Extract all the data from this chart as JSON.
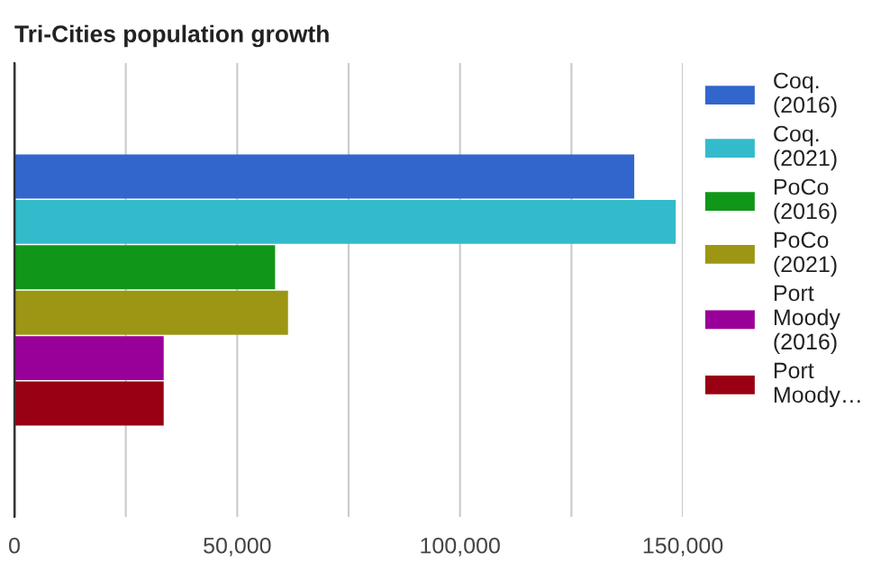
{
  "chart_data": {
    "type": "bar",
    "orientation": "horizontal",
    "title": "Tri-Cities population growth",
    "categories": [
      null
    ],
    "series": [
      {
        "name": "Coq.\n(2016)",
        "color": "#3366cc",
        "values": [
          139100
        ]
      },
      {
        "name": "Coq.\n(2021)",
        "color": "#33bbcc",
        "values": [
          148400
        ]
      },
      {
        "name": "PoCo\n(2016)",
        "color": "#109618",
        "values": [
          58500
        ]
      },
      {
        "name": "PoCo\n(2021)",
        "color": "#9c9614",
        "values": [
          61400
        ]
      },
      {
        "name": "Port\nMoody\n(2016)",
        "color": "#990099",
        "values": [
          33500
        ]
      },
      {
        "name": "Port\nMoody…",
        "color": "#990013",
        "values": [
          33500
        ]
      }
    ],
    "xlim": [
      0,
      150000
    ],
    "xticks": [
      0,
      {
        "value": 25000,
        "label": null
      },
      {
        "value": 50000,
        "label": "50,000"
      },
      {
        "value": 75000,
        "label": null
      },
      {
        "value": 100000,
        "label": "100,000"
      },
      {
        "value": 125000,
        "label": null
      },
      {
        "value": 150000,
        "label": "150,000"
      }
    ],
    "grid": "x",
    "legend": "right",
    "tick_labels": "x"
  }
}
